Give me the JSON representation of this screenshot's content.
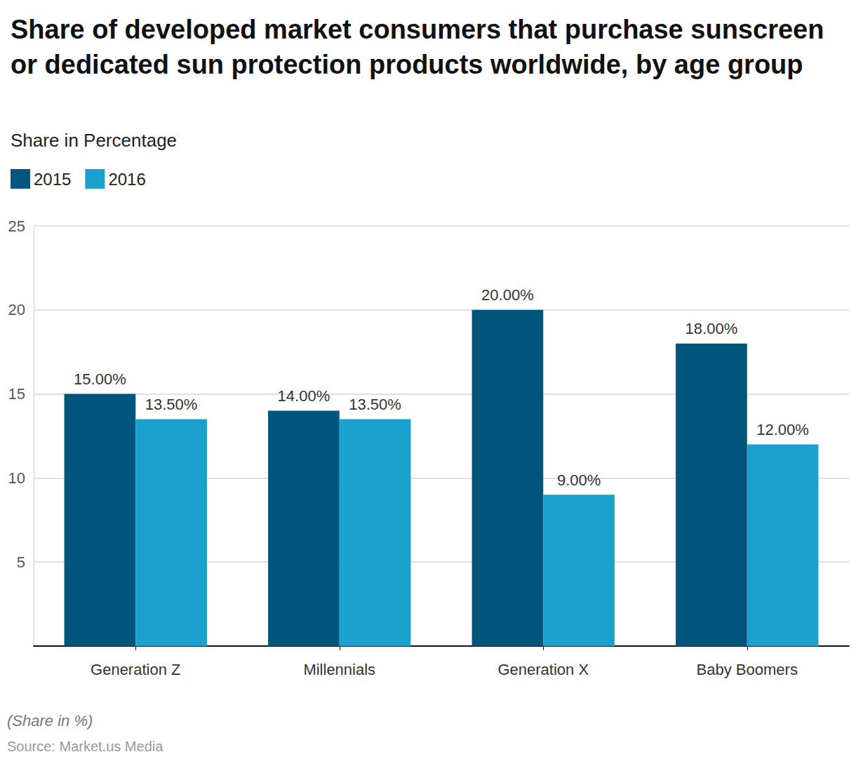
{
  "chart_data": {
    "type": "bar",
    "title": "Share of developed market consumers that purchase sunscreen or dedicated sun protection products worldwide, by age group",
    "subtitle": "Share in Percentage",
    "categories": [
      "Generation Z",
      "Millennials",
      "Generation X",
      "Baby Boomers"
    ],
    "series": [
      {
        "name": "2015",
        "color": "#02557b",
        "values": [
          15,
          14,
          20,
          18
        ],
        "value_labels": [
          "15.00%",
          "14.00%",
          "20.00%",
          "18.00%"
        ]
      },
      {
        "name": "2016",
        "color": "#1ba1cd",
        "values": [
          13.5,
          13.5,
          9,
          12
        ],
        "value_labels": [
          "13.50%",
          "13.50%",
          "9.00%",
          "12.00%"
        ]
      }
    ],
    "ylim": [
      0,
      25
    ],
    "yticks": [
      5,
      10,
      15,
      20,
      25
    ],
    "grid": true,
    "legend": "top-left",
    "data_labels": true,
    "footnote": "(Share in %)",
    "source": "Source: Market.us Media"
  }
}
